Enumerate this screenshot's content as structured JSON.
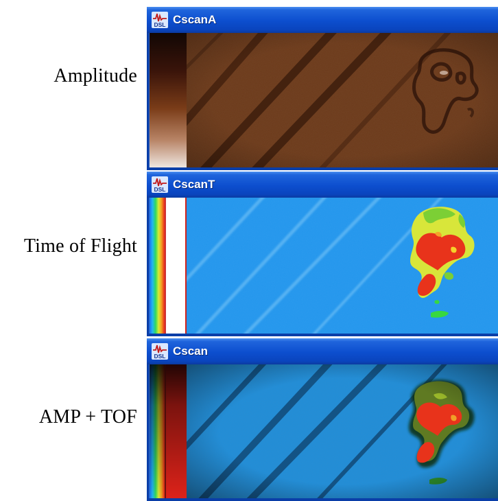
{
  "rows": [
    {
      "label": "Amplitude",
      "window_title": "CscanA",
      "mode": "amplitude"
    },
    {
      "label": "Time of Flight",
      "window_title": "CscanT",
      "mode": "tof"
    },
    {
      "label": "AMP + TOF",
      "window_title": "Cscan",
      "mode": "amp_tof"
    }
  ],
  "app_icon": {
    "name": "dsl-app-icon",
    "text": "DSL"
  },
  "colors": {
    "titlebar": "#0c4ece",
    "amplitude_background": "#6b3a1b",
    "tof_background": "#1f8fe6",
    "defect_red": "#e8331b",
    "defect_yellow": "#d8e63a",
    "defect_green": "#7ccf35"
  }
}
